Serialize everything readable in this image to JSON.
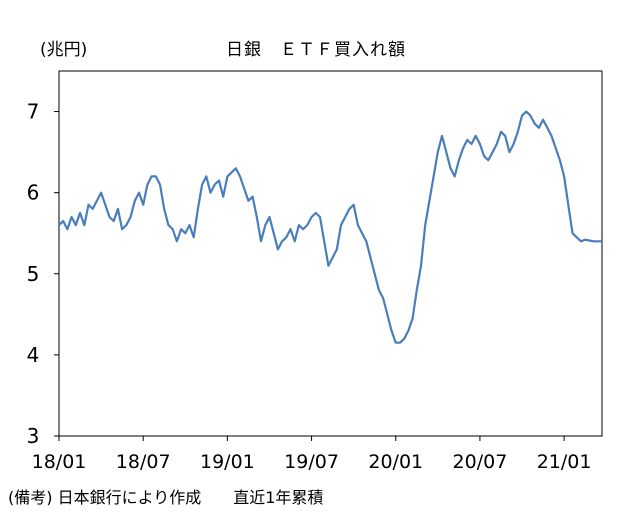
{
  "chart_data": {
    "type": "line",
    "title": "日銀　ＥＴＦ買入れ額",
    "unit_label": "(兆円)",
    "note": "(備考) 日本銀行により作成　　直近1年累積",
    "xlim": [
      0,
      38.7
    ],
    "ylim": [
      3,
      7.5
    ],
    "yticks": [
      3,
      4,
      5,
      6,
      7
    ],
    "ytick_labels": [
      "3",
      "4",
      "5",
      "6",
      "7"
    ],
    "xticks": [
      0,
      6,
      12,
      18,
      24,
      30,
      36
    ],
    "xtick_labels": [
      "18/01",
      "18/07",
      "19/01",
      "19/07",
      "20/01",
      "20/07",
      "21/01"
    ],
    "grid": false,
    "line_color": "#4a7ebb",
    "series": [
      {
        "x": [
          0,
          0.3,
          0.6,
          0.9,
          1.2,
          1.5,
          1.8,
          2.1,
          2.4,
          2.7,
          3.0,
          3.3,
          3.6,
          3.9,
          4.2,
          4.5,
          4.8,
          5.1,
          5.4,
          5.7,
          6.0,
          6.3,
          6.6,
          6.9,
          7.2,
          7.5,
          7.8,
          8.1,
          8.4,
          8.7,
          9.0,
          9.3,
          9.6,
          9.9,
          10.2,
          10.5,
          10.8,
          11.1,
          11.4,
          11.7,
          12.0,
          12.3,
          12.6,
          12.9,
          13.2,
          13.5,
          13.8,
          14.1,
          14.4,
          14.7,
          15.0,
          15.3,
          15.6,
          15.9,
          16.2,
          16.5,
          16.8,
          17.1,
          17.4,
          17.7,
          18.0,
          18.3,
          18.6,
          18.9,
          19.2,
          19.5,
          19.8,
          20.1,
          20.4,
          20.7,
          21.0,
          21.3,
          21.6,
          21.9,
          22.2,
          22.5,
          22.8,
          23.1,
          23.4,
          23.7,
          24.0,
          24.3,
          24.6,
          24.9,
          25.2,
          25.5,
          25.8,
          26.1,
          26.4,
          26.7,
          27.0,
          27.3,
          27.6,
          27.9,
          28.2,
          28.5,
          28.8,
          29.1,
          29.4,
          29.7,
          30.0,
          30.3,
          30.6,
          30.9,
          31.2,
          31.5,
          31.8,
          32.1,
          32.4,
          32.7,
          33.0,
          33.3,
          33.6,
          33.9,
          34.2,
          34.5,
          34.8,
          35.1,
          35.4,
          35.7,
          36.0,
          36.3,
          36.6,
          36.9,
          37.2,
          37.5,
          37.8,
          38.1,
          38.4,
          38.7
        ],
        "y": [
          5.6,
          5.65,
          5.55,
          5.7,
          5.6,
          5.75,
          5.6,
          5.85,
          5.8,
          5.9,
          6.0,
          5.85,
          5.7,
          5.65,
          5.8,
          5.55,
          5.6,
          5.7,
          5.9,
          6.0,
          5.85,
          6.1,
          6.2,
          6.2,
          6.1,
          5.8,
          5.6,
          5.55,
          5.4,
          5.55,
          5.5,
          5.6,
          5.45,
          5.8,
          6.1,
          6.2,
          6.0,
          6.1,
          6.15,
          5.95,
          6.2,
          6.25,
          6.3,
          6.2,
          6.05,
          5.9,
          5.95,
          5.7,
          5.4,
          5.6,
          5.7,
          5.5,
          5.3,
          5.4,
          5.45,
          5.55,
          5.4,
          5.6,
          5.55,
          5.6,
          5.7,
          5.75,
          5.7,
          5.4,
          5.1,
          5.2,
          5.3,
          5.6,
          5.7,
          5.8,
          5.85,
          5.6,
          5.5,
          5.4,
          5.2,
          5.0,
          4.8,
          4.7,
          4.5,
          4.3,
          4.15,
          4.15,
          4.2,
          4.3,
          4.45,
          4.8,
          5.1,
          5.6,
          5.9,
          6.2,
          6.5,
          6.7,
          6.5,
          6.3,
          6.2,
          6.4,
          6.55,
          6.65,
          6.6,
          6.7,
          6.6,
          6.45,
          6.4,
          6.5,
          6.6,
          6.75,
          6.7,
          6.5,
          6.6,
          6.75,
          6.95,
          7.0,
          6.95,
          6.85,
          6.8,
          6.9,
          6.8,
          6.7,
          6.55,
          6.4,
          6.2,
          5.85,
          5.5,
          5.45,
          5.4,
          5.42,
          5.41,
          5.4,
          5.4,
          5.4
        ]
      }
    ]
  }
}
